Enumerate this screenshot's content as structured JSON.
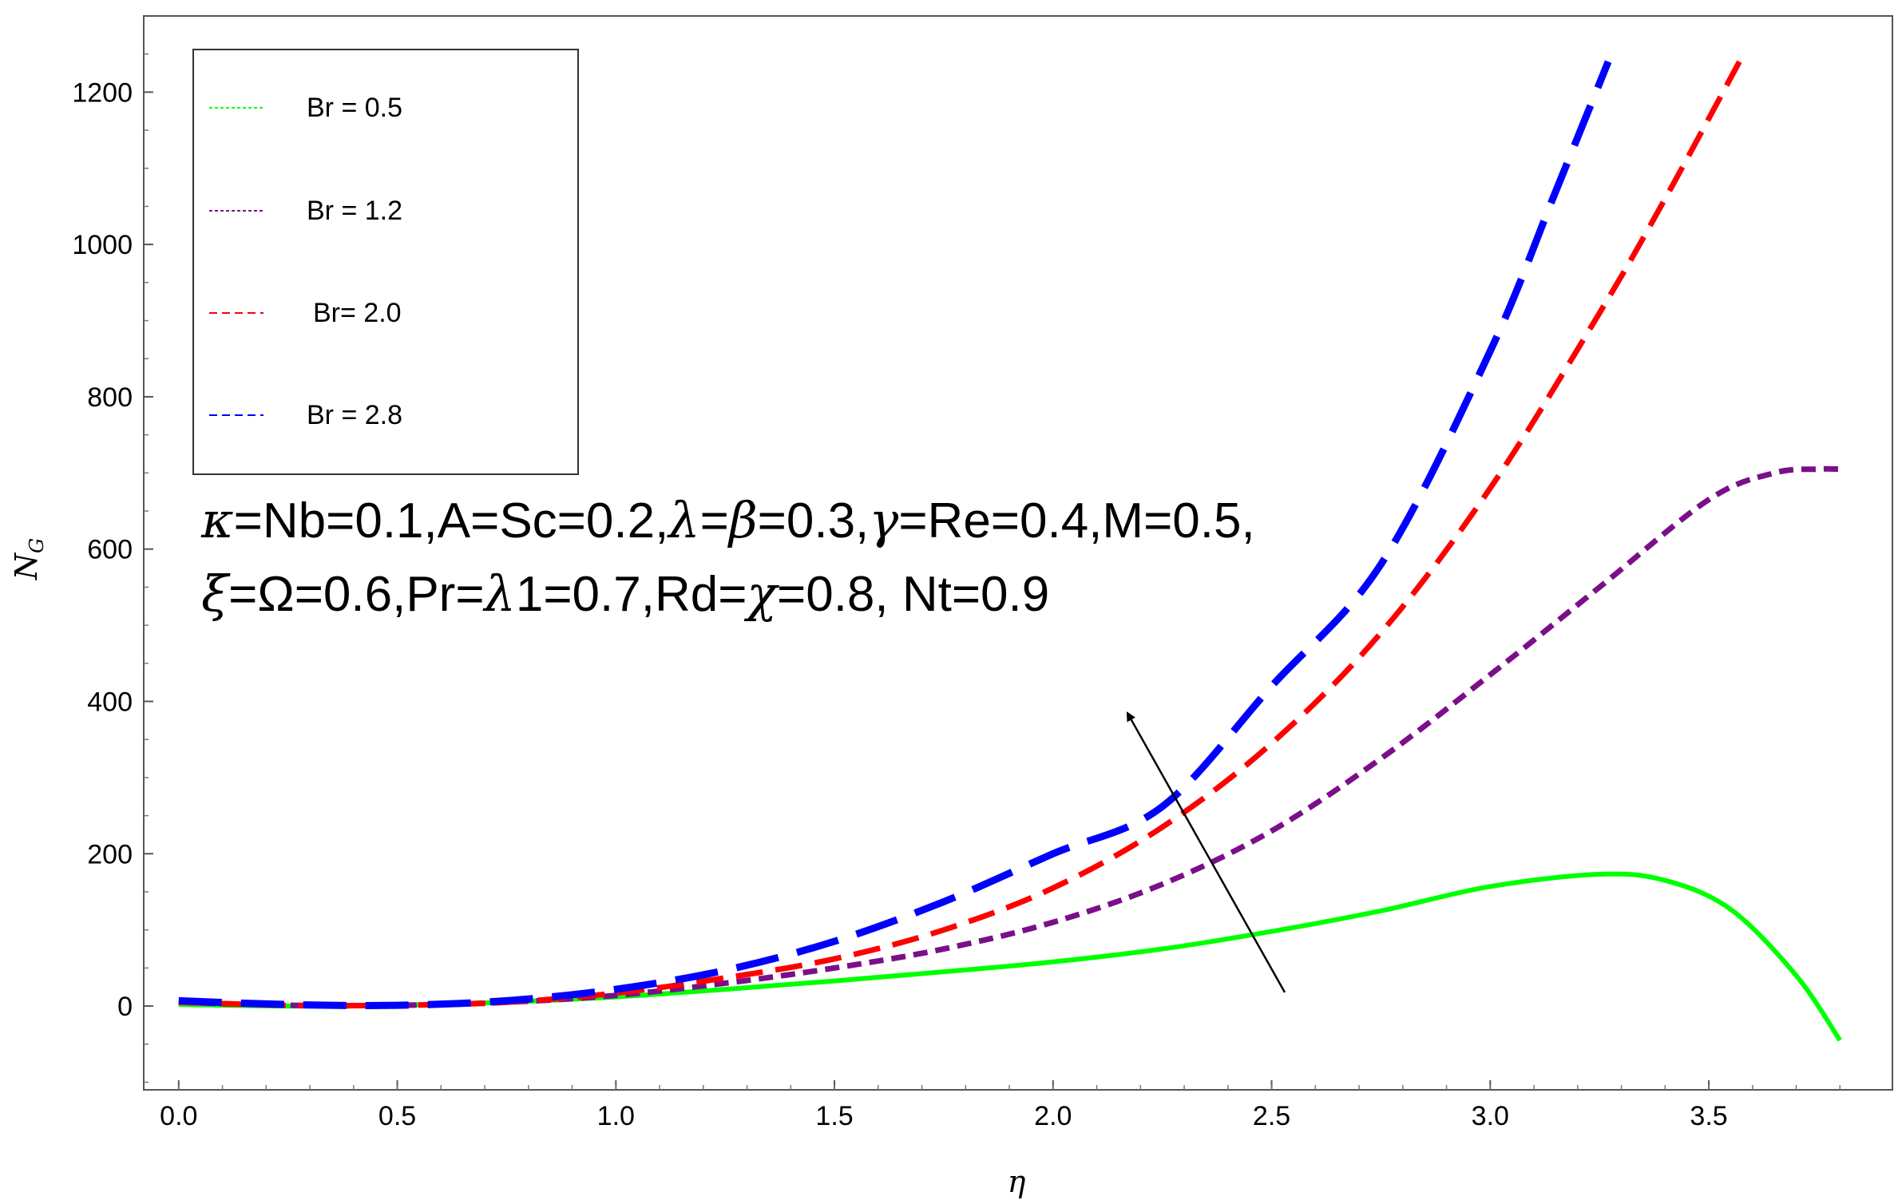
{
  "chart_data": {
    "type": "line",
    "title": "",
    "xlabel": "η",
    "ylabel_main": "N",
    "ylabel_sub": "G",
    "xlim": [
      -0.08,
      3.92
    ],
    "ylim": [
      -110,
      1300
    ],
    "x_ticks": [
      0.0,
      0.5,
      1.0,
      1.5,
      2.0,
      2.5,
      3.0,
      3.5
    ],
    "x_tick_labels": [
      "0.0",
      "0.5",
      "1.0",
      "1.5",
      "2.0",
      "2.5",
      "3.0",
      "3.5"
    ],
    "y_ticks": [
      0,
      200,
      400,
      600,
      800,
      1000,
      1200
    ],
    "y_tick_labels": [
      "0",
      "200",
      "400",
      "600",
      "800",
      "1000",
      "1200"
    ],
    "grid": false,
    "legend_position": "top-left",
    "series": [
      {
        "name": "Br = 0.5",
        "color": "#00ff00",
        "style": "solid",
        "x": [
          0.0,
          0.25,
          0.5,
          0.75,
          1.0,
          1.25,
          1.5,
          1.75,
          2.0,
          2.25,
          2.5,
          2.75,
          3.0,
          3.25,
          3.4,
          3.55,
          3.7,
          3.8
        ],
        "y": [
          2,
          0,
          1,
          5,
          12,
          22,
          33,
          45,
          58,
          75,
          98,
          125,
          157,
          173,
          165,
          127,
          40,
          -45
        ]
      },
      {
        "name": "Br = 1.2",
        "color": "#7b0f8a",
        "style": "short-dash",
        "x": [
          0.0,
          0.25,
          0.5,
          0.75,
          1.0,
          1.25,
          1.5,
          1.75,
          2.0,
          2.25,
          2.5,
          2.75,
          3.0,
          3.25,
          3.5,
          3.65,
          3.75,
          3.8
        ],
        "y": [
          5,
          1,
          1,
          5,
          14,
          30,
          50,
          75,
          110,
          160,
          230,
          325,
          435,
          550,
          665,
          700,
          705,
          705
        ]
      },
      {
        "name": "Br= 2.0",
        "color": "#ff0000",
        "style": "medium-dash",
        "x": [
          0.0,
          0.25,
          0.5,
          0.75,
          1.0,
          1.25,
          1.5,
          1.75,
          2.0,
          2.25,
          2.5,
          2.75,
          3.0,
          3.25,
          3.4,
          3.57
        ],
        "y": [
          5,
          1,
          1,
          5,
          17,
          37,
          62,
          100,
          155,
          235,
          345,
          490,
          680,
          910,
          1060,
          1240
        ]
      },
      {
        "name": "Br = 2.8",
        "color": "#0000ff",
        "style": "long-dash",
        "x": [
          0.0,
          0.25,
          0.5,
          0.75,
          1.0,
          1.25,
          1.5,
          1.75,
          2.0,
          2.25,
          2.5,
          2.75,
          3.0,
          3.15,
          3.27
        ],
        "y": [
          7,
          2,
          1,
          7,
          22,
          47,
          85,
          137,
          200,
          262,
          420,
          580,
          860,
          1070,
          1240
        ]
      }
    ],
    "annotations": {
      "line1_parts": [
        "κ",
        "=Nb=0.1,A=Sc=0.2,",
        "λ",
        "=",
        "β",
        "=0.3,",
        "γ",
        "=Re=0.4,M=0.5,"
      ],
      "line2_parts": [
        "ξ",
        "=Ω=0.6,Pr=",
        "λ",
        "1=0.7,Rd=",
        "χ",
        "=0.8, Nt=0.9"
      ],
      "arrow": {
        "from": [
          2.53,
          18
        ],
        "to": [
          2.17,
          385
        ]
      }
    }
  }
}
